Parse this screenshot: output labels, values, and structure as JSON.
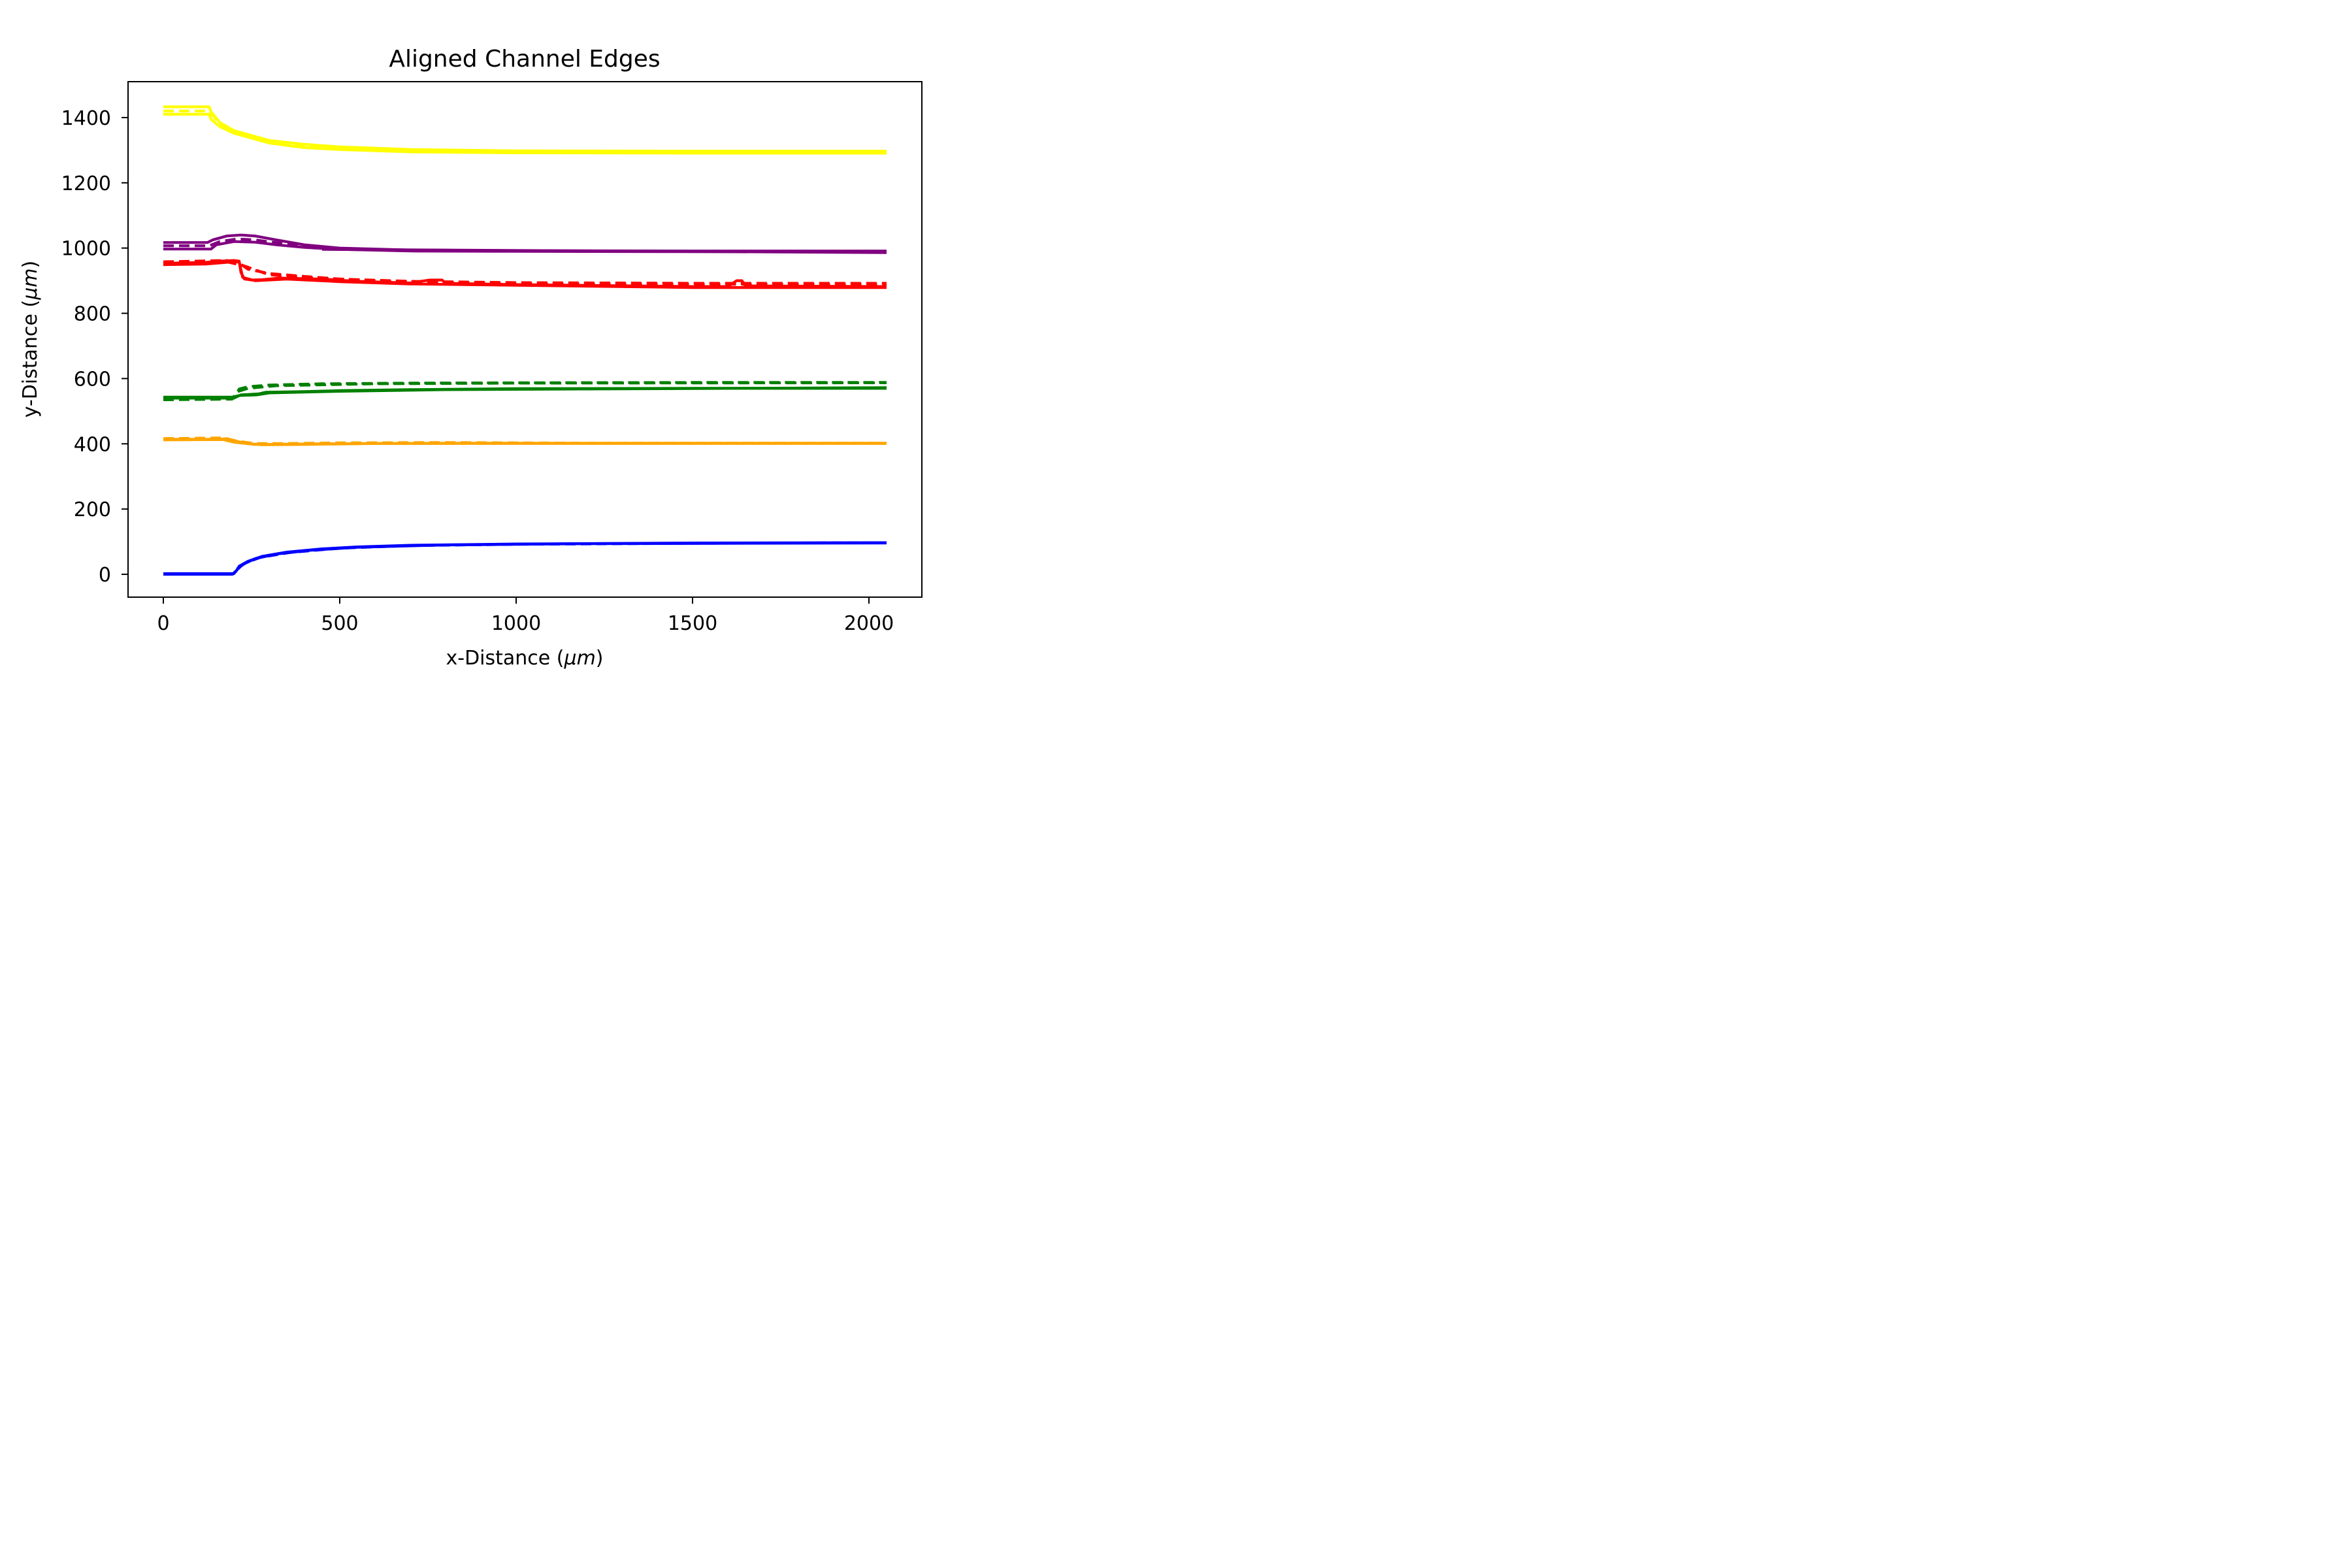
{
  "chart_data": {
    "type": "line",
    "title": "Aligned Channel Edges",
    "xlabel_text": "x-Distance (",
    "xlabel_unit": "μm",
    "xlabel_close": ")",
    "ylabel_text": "y-Distance (",
    "ylabel_unit": "μm",
    "ylabel_close": ")",
    "xlim": [
      -100,
      2150
    ],
    "ylim": [
      -70,
      1510
    ],
    "xticks": [
      0,
      500,
      1000,
      1500,
      2000
    ],
    "yticks": [
      0,
      200,
      400,
      600,
      800,
      1000,
      1200,
      1400
    ],
    "grid": false,
    "legend": "none",
    "series": [
      {
        "color": "#ffff00",
        "dashed": false,
        "points": [
          [
            0,
            1433
          ],
          [
            130,
            1433
          ],
          [
            135,
            1418
          ],
          [
            160,
            1385
          ],
          [
            200,
            1360
          ],
          [
            300,
            1330
          ],
          [
            400,
            1318
          ],
          [
            500,
            1310
          ],
          [
            700,
            1302
          ],
          [
            1000,
            1298
          ],
          [
            1500,
            1297
          ],
          [
            2050,
            1297
          ]
        ]
      },
      {
        "color": "#ffff00",
        "dashed": false,
        "points": [
          [
            0,
            1410
          ],
          [
            130,
            1410
          ],
          [
            135,
            1395
          ],
          [
            160,
            1372
          ],
          [
            200,
            1352
          ],
          [
            300,
            1322
          ],
          [
            400,
            1308
          ],
          [
            500,
            1302
          ],
          [
            700,
            1295
          ],
          [
            1000,
            1292
          ],
          [
            1500,
            1291
          ],
          [
            2050,
            1291
          ]
        ]
      },
      {
        "color": "#ffff00",
        "dashed": true,
        "points": [
          [
            0,
            1420
          ],
          [
            130,
            1420
          ],
          [
            160,
            1380
          ],
          [
            200,
            1356
          ],
          [
            300,
            1326
          ],
          [
            400,
            1313
          ],
          [
            500,
            1306
          ],
          [
            700,
            1298
          ],
          [
            1000,
            1295
          ],
          [
            1500,
            1294
          ],
          [
            2050,
            1294
          ]
        ]
      },
      {
        "color": "#800080",
        "dashed": false,
        "points": [
          [
            0,
            1017
          ],
          [
            125,
            1017
          ],
          [
            140,
            1025
          ],
          [
            180,
            1037
          ],
          [
            220,
            1040
          ],
          [
            260,
            1037
          ],
          [
            320,
            1025
          ],
          [
            400,
            1010
          ],
          [
            500,
            1000
          ],
          [
            700,
            994
          ],
          [
            1000,
            992
          ],
          [
            1500,
            991
          ],
          [
            2050,
            991
          ]
        ]
      },
      {
        "color": "#800080",
        "dashed": false,
        "points": [
          [
            0,
            997
          ],
          [
            135,
            997
          ],
          [
            150,
            1010
          ],
          [
            200,
            1020
          ],
          [
            260,
            1018
          ],
          [
            320,
            1010
          ],
          [
            400,
            1002
          ],
          [
            500,
            996
          ],
          [
            700,
            991
          ],
          [
            1000,
            990
          ],
          [
            1500,
            989
          ],
          [
            2050,
            989
          ]
        ]
      },
      {
        "color": "#800080",
        "dashed": true,
        "points": [
          [
            0,
            1007
          ],
          [
            130,
            1007
          ],
          [
            160,
            1020
          ],
          [
            210,
            1028
          ],
          [
            260,
            1025
          ],
          [
            330,
            1015
          ],
          [
            420,
            1004
          ],
          [
            520,
            998
          ],
          [
            700,
            993
          ],
          [
            1000,
            991
          ],
          [
            2050,
            990
          ]
        ]
      },
      {
        "color": "#800080",
        "dashed": false,
        "points": [
          [
            450,
            996
          ],
          [
            2050,
            986
          ]
        ]
      },
      {
        "color": "#ff0000",
        "dashed": false,
        "points": [
          [
            0,
            953
          ],
          [
            120,
            956
          ],
          [
            160,
            960
          ],
          [
            200,
            962
          ],
          [
            215,
            960
          ],
          [
            220,
            925
          ],
          [
            230,
            905
          ],
          [
            250,
            902
          ],
          [
            280,
            903
          ],
          [
            330,
            908
          ],
          [
            450,
            905
          ],
          [
            550,
            898
          ],
          [
            700,
            893
          ],
          [
            755,
            902
          ],
          [
            790,
            902
          ],
          [
            800,
            892
          ],
          [
            1000,
            888
          ],
          [
            1500,
            882
          ],
          [
            1600,
            882
          ],
          [
            1625,
            900
          ],
          [
            1640,
            900
          ],
          [
            1650,
            884
          ],
          [
            2050,
            882
          ]
        ]
      },
      {
        "color": "#ff0000",
        "dashed": false,
        "points": [
          [
            0,
            949
          ],
          [
            120,
            951
          ],
          [
            200,
            958
          ],
          [
            215,
            957
          ],
          [
            225,
            910
          ],
          [
            260,
            900
          ],
          [
            350,
            905
          ],
          [
            500,
            897
          ],
          [
            700,
            890
          ],
          [
            1000,
            886
          ],
          [
            1500,
            879
          ],
          [
            2050,
            879
          ]
        ]
      },
      {
        "color": "#ff0000",
        "dashed": true,
        "points": [
          [
            0,
            958
          ],
          [
            180,
            962
          ],
          [
            220,
            950
          ],
          [
            240,
            935
          ],
          [
            300,
            922
          ],
          [
            400,
            913
          ],
          [
            500,
            905
          ],
          [
            700,
            898
          ],
          [
            1000,
            894
          ],
          [
            1500,
            892
          ],
          [
            2050,
            892
          ]
        ]
      },
      {
        "color": "#ff0000",
        "dashed": true,
        "points": [
          [
            0,
            955
          ],
          [
            180,
            958
          ],
          [
            230,
            945
          ],
          [
            300,
            918
          ],
          [
            400,
            910
          ],
          [
            600,
            900
          ],
          [
            1000,
            890
          ],
          [
            2050,
            888
          ]
        ]
      },
      {
        "color": "#008000",
        "dashed": false,
        "points": [
          [
            0,
            540
          ],
          [
            200,
            540
          ],
          [
            220,
            550
          ],
          [
            270,
            553
          ],
          [
            290,
            558
          ],
          [
            400,
            560
          ],
          [
            500,
            563
          ],
          [
            700,
            566
          ],
          [
            1000,
            569
          ],
          [
            1500,
            570
          ],
          [
            2050,
            570
          ]
        ]
      },
      {
        "color": "#008000",
        "dashed": false,
        "points": [
          [
            0,
            543
          ],
          [
            195,
            543
          ],
          [
            215,
            548
          ],
          [
            265,
            550
          ],
          [
            300,
            556
          ],
          [
            500,
            561
          ],
          [
            800,
            566
          ],
          [
            1200,
            568
          ],
          [
            2050,
            572
          ]
        ]
      },
      {
        "color": "#008000",
        "dashed": true,
        "points": [
          [
            0,
            537
          ],
          [
            200,
            540
          ],
          [
            215,
            568
          ],
          [
            240,
            575
          ],
          [
            300,
            580
          ],
          [
            450,
            584
          ],
          [
            700,
            586
          ],
          [
            1000,
            587
          ],
          [
            1500,
            588
          ],
          [
            2050,
            588
          ]
        ]
      },
      {
        "color": "#008000",
        "dashed": true,
        "points": [
          [
            0,
            535
          ],
          [
            195,
            537
          ],
          [
            210,
            560
          ],
          [
            240,
            570
          ],
          [
            320,
            578
          ],
          [
            600,
            584
          ],
          [
            1000,
            586
          ],
          [
            2050,
            587
          ]
        ]
      },
      {
        "color": "#ffa500",
        "dashed": false,
        "points": [
          [
            0,
            414
          ],
          [
            160,
            414
          ],
          [
            180,
            416
          ],
          [
            200,
            410
          ],
          [
            230,
            402
          ],
          [
            280,
            397
          ],
          [
            400,
            398
          ],
          [
            600,
            401
          ],
          [
            1000,
            402
          ],
          [
            2050,
            402
          ]
        ]
      },
      {
        "color": "#ffa500",
        "dashed": false,
        "points": [
          [
            0,
            412
          ],
          [
            170,
            413
          ],
          [
            200,
            405
          ],
          [
            260,
            398
          ],
          [
            350,
            399
          ],
          [
            600,
            401
          ],
          [
            1000,
            401
          ],
          [
            2050,
            401
          ]
        ]
      },
      {
        "color": "#ffa500",
        "dashed": true,
        "points": [
          [
            0,
            416
          ],
          [
            170,
            418
          ],
          [
            210,
            408
          ],
          [
            260,
            401
          ],
          [
            350,
            401
          ],
          [
            500,
            403
          ],
          [
            800,
            404
          ],
          [
            1200,
            402
          ],
          [
            2050,
            402
          ]
        ]
      },
      {
        "color": "#0000ff",
        "dashed": false,
        "points": [
          [
            0,
            0
          ],
          [
            195,
            0
          ],
          [
            205,
            8
          ],
          [
            215,
            25
          ],
          [
            240,
            40
          ],
          [
            280,
            55
          ],
          [
            350,
            68
          ],
          [
            450,
            78
          ],
          [
            550,
            84
          ],
          [
            700,
            89
          ],
          [
            1000,
            93
          ],
          [
            1500,
            96
          ],
          [
            2050,
            97
          ]
        ]
      },
      {
        "color": "#0000ff",
        "dashed": false,
        "points": [
          [
            0,
            2
          ],
          [
            200,
            2
          ],
          [
            210,
            15
          ],
          [
            225,
            30
          ],
          [
            260,
            48
          ],
          [
            320,
            62
          ],
          [
            420,
            74
          ],
          [
            550,
            83
          ],
          [
            800,
            90
          ],
          [
            1200,
            94
          ],
          [
            2050,
            96
          ]
        ]
      },
      {
        "color": "#0000ff",
        "dashed": true,
        "points": [
          [
            0,
            1
          ],
          [
            198,
            1
          ],
          [
            212,
            20
          ],
          [
            235,
            36
          ],
          [
            275,
            52
          ],
          [
            360,
            67
          ],
          [
            500,
            80
          ],
          [
            700,
            88
          ],
          [
            1000,
            92
          ],
          [
            1500,
            95
          ],
          [
            2050,
            97
          ]
        ]
      }
    ]
  }
}
